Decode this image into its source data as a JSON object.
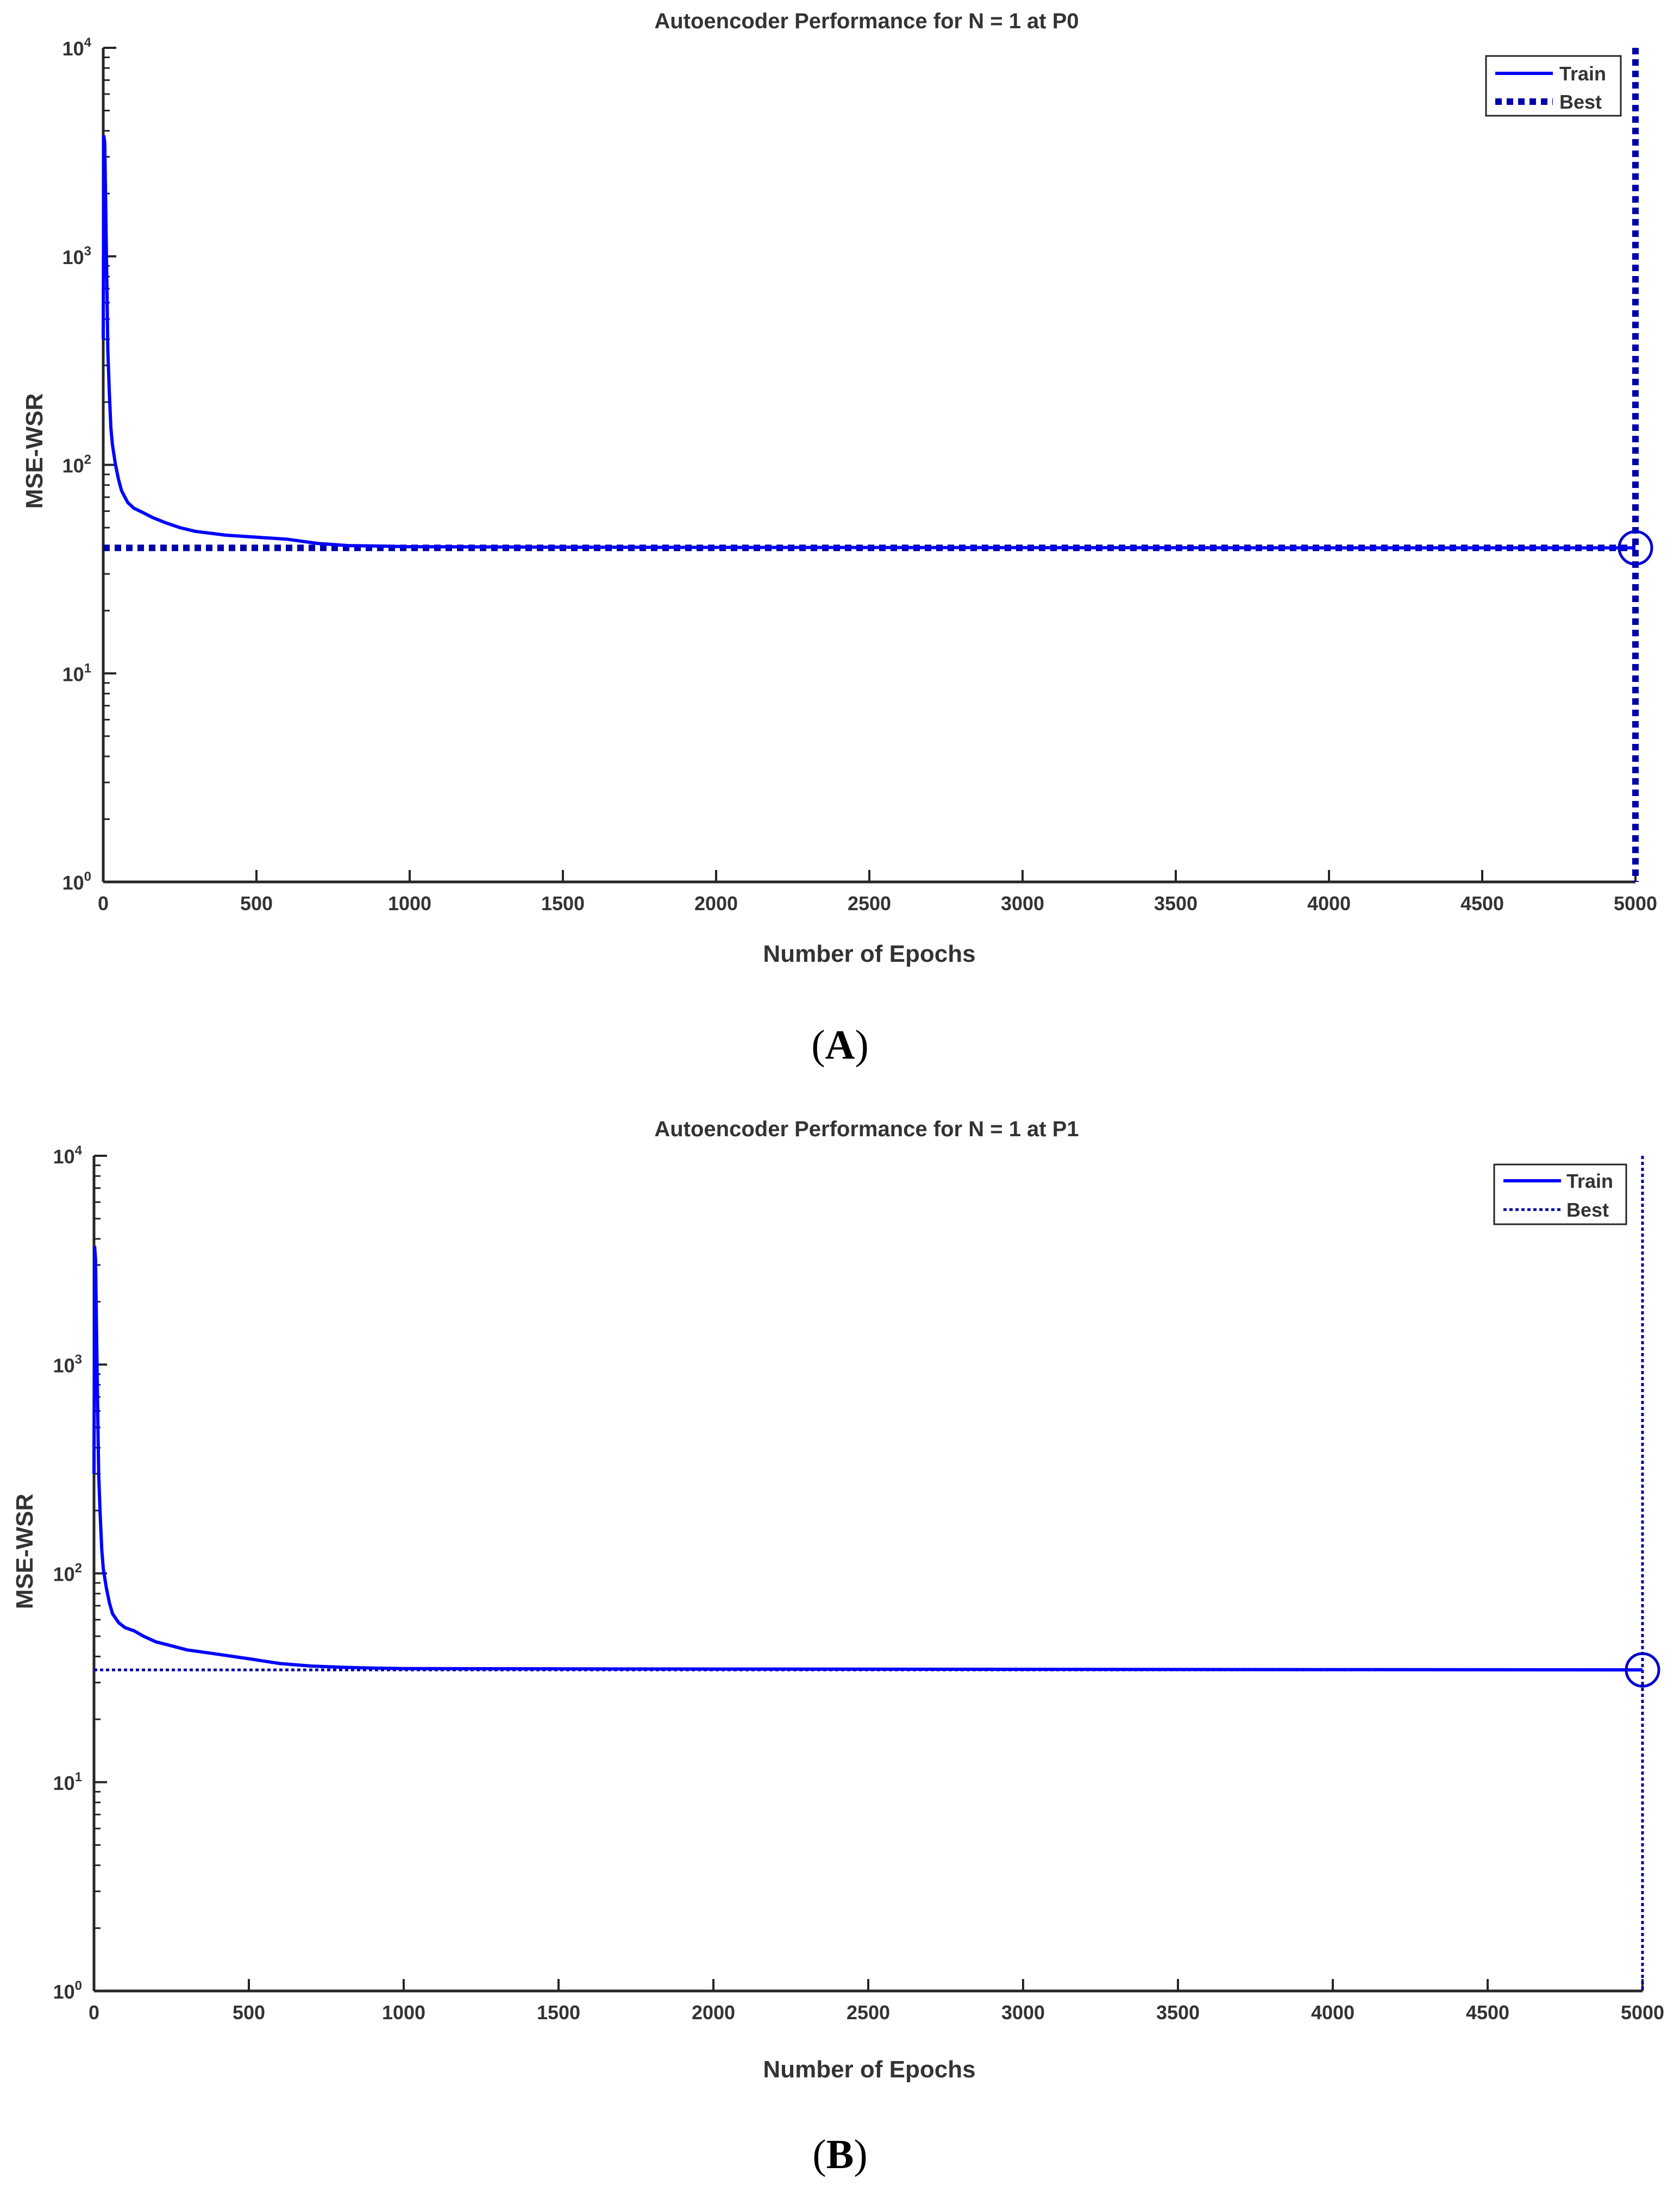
{
  "chart_data": [
    {
      "type": "line",
      "panel_label": "A",
      "title": "Autoencoder Performance for N = 1 at P0",
      "xlabel": "Number of Epochs",
      "ylabel": "MSE-WSR",
      "xlim": [
        0,
        5000
      ],
      "ylim": [
        1,
        10000
      ],
      "y_scale": "log",
      "x_ticks": [
        "0",
        "500",
        "1000",
        "1500",
        "2000",
        "2500",
        "3000",
        "3500",
        "4000",
        "4500",
        "5000"
      ],
      "y_ticks": [
        {
          "base": "10",
          "exp": "0"
        },
        {
          "base": "10",
          "exp": "1"
        },
        {
          "base": "10",
          "exp": "2"
        },
        {
          "base": "10",
          "exp": "3"
        },
        {
          "base": "10",
          "exp": "4"
        }
      ],
      "grid": false,
      "legend_position": "top-right",
      "series": [
        {
          "name": "Train",
          "style": "solid",
          "color": "#0000ff",
          "x": [
            0,
            2,
            5,
            8,
            12,
            15,
            20,
            25,
            30,
            40,
            50,
            60,
            80,
            100,
            130,
            160,
            200,
            250,
            300,
            400,
            500,
            600,
            700,
            800,
            900,
            1000,
            1500,
            2000,
            3000,
            4000,
            5000
          ],
          "y": [
            400,
            3800,
            3500,
            1800,
            700,
            350,
            220,
            150,
            125,
            100,
            85,
            75,
            66,
            62,
            59,
            56,
            53,
            50,
            48,
            46,
            45,
            44,
            42,
            41,
            40.8,
            40.5,
            40.3,
            40.2,
            40.1,
            40.0,
            40.0
          ]
        },
        {
          "name": "Best",
          "style": "dotted",
          "color": "#0000aa",
          "best_epoch": 5000,
          "best_value": 40
        }
      ]
    },
    {
      "type": "line",
      "panel_label": "B",
      "title": "Autoencoder Performance for N = 1 at P1",
      "xlabel": "Number of Epochs",
      "ylabel": "MSE-WSR",
      "xlim": [
        0,
        5000
      ],
      "ylim": [
        1,
        10000
      ],
      "y_scale": "log",
      "x_ticks": [
        "0",
        "500",
        "1000",
        "1500",
        "2000",
        "2500",
        "3000",
        "3500",
        "4000",
        "4500",
        "5000"
      ],
      "y_ticks": [
        {
          "base": "10",
          "exp": "0"
        },
        {
          "base": "10",
          "exp": "1"
        },
        {
          "base": "10",
          "exp": "2"
        },
        {
          "base": "10",
          "exp": "3"
        },
        {
          "base": "10",
          "exp": "4"
        }
      ],
      "grid": false,
      "legend_position": "top-right",
      "series": [
        {
          "name": "Train",
          "style": "solid",
          "color": "#0000ff",
          "x": [
            0,
            2,
            5,
            8,
            12,
            15,
            20,
            25,
            30,
            40,
            50,
            60,
            80,
            100,
            130,
            160,
            200,
            250,
            300,
            400,
            500,
            600,
            700,
            800,
            900,
            1000,
            1500,
            2000,
            3000,
            4000,
            5000
          ],
          "y": [
            300,
            3700,
            3200,
            1500,
            600,
            300,
            190,
            130,
            105,
            85,
            72,
            64,
            58,
            55,
            53,
            50,
            47,
            45,
            43,
            41,
            39,
            37,
            36,
            35.5,
            35.2,
            35.0,
            34.9,
            34.8,
            34.7,
            34.6,
            34.5
          ]
        },
        {
          "name": "Best",
          "style": "dotted",
          "color": "#0000aa",
          "best_epoch": 5000,
          "best_value": 34.5
        }
      ]
    }
  ]
}
